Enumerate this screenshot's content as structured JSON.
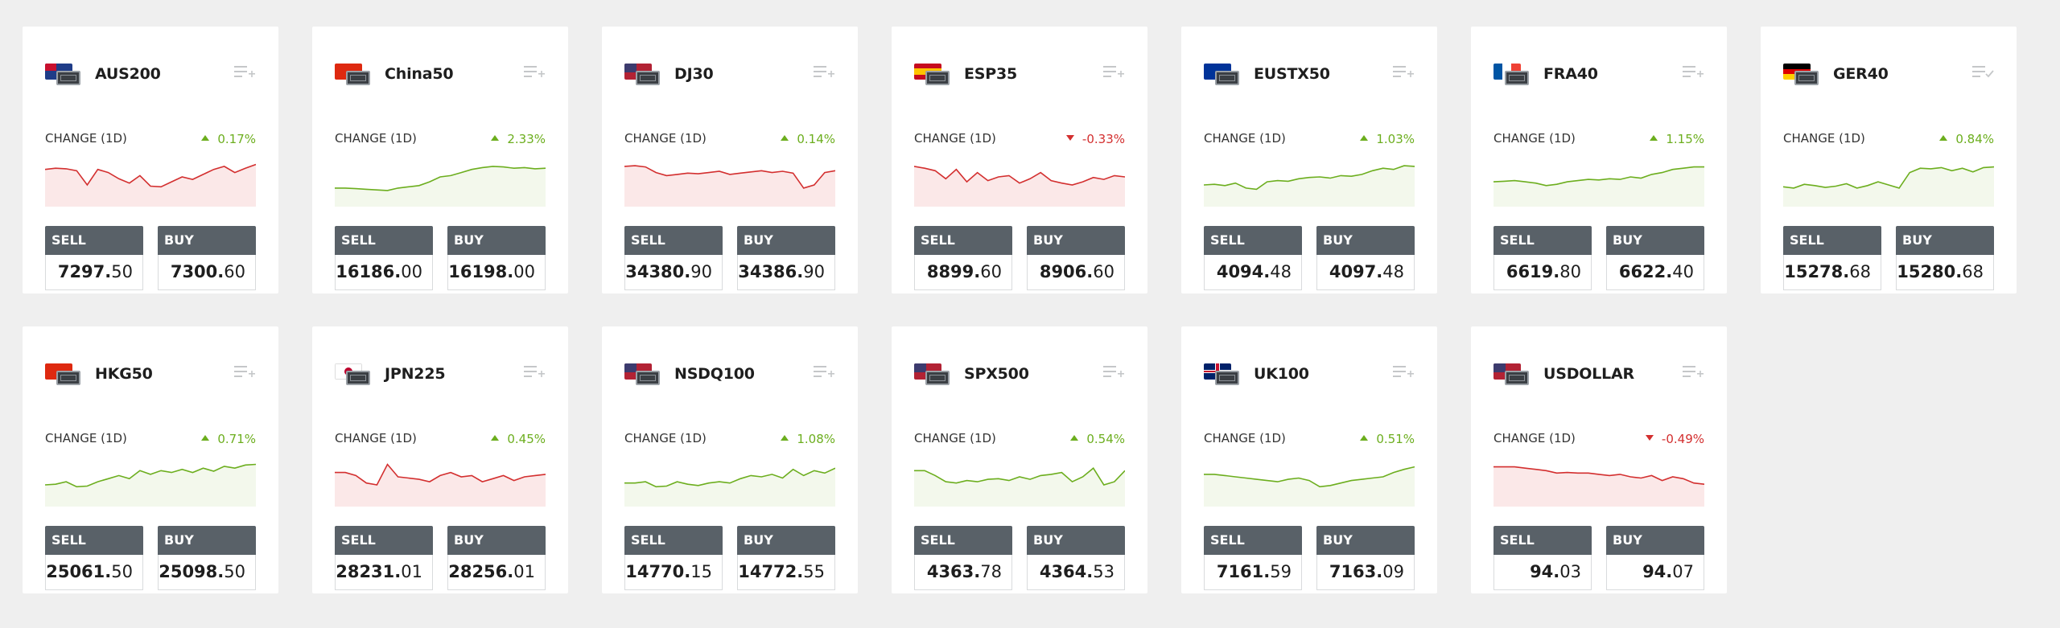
{
  "labels": {
    "change": "CHANGE (1D)",
    "sell": "SELL",
    "buy": "BUY"
  },
  "colors": {
    "up": "#6cae1e",
    "down": "#d32f2f",
    "up_fill": "#f3f8ec",
    "down_fill": "#fbe8e8",
    "button": "#596168",
    "background": "#efefef"
  },
  "cards": [
    {
      "symbol": "AUS200",
      "flag": "au",
      "change": "0.17%",
      "direction": "up",
      "sparkline_color": "down",
      "sell_main": "7297.",
      "sell_small": "50",
      "buy_main": "7300.",
      "buy_small": "60",
      "watch": "add",
      "spark": [
        60,
        62,
        61,
        58,
        35,
        60,
        55,
        45,
        38,
        50,
        33,
        32,
        40,
        48,
        44,
        52,
        60,
        65,
        55,
        62,
        68
      ]
    },
    {
      "symbol": "China50",
      "flag": "cn",
      "change": "2.33%",
      "direction": "up",
      "sparkline_color": "up",
      "sell_main": "16186.",
      "sell_small": "00",
      "buy_main": "16198.",
      "buy_small": "00",
      "watch": "add",
      "spark": [
        30,
        30,
        29,
        28,
        27,
        26,
        30,
        32,
        34,
        40,
        48,
        50,
        55,
        60,
        63,
        65,
        64,
        62,
        63,
        61,
        62
      ]
    },
    {
      "symbol": "DJ30",
      "flag": "us",
      "change": "0.14%",
      "direction": "up",
      "sparkline_color": "down",
      "sell_main": "34380.",
      "sell_small": "90",
      "buy_main": "34386.",
      "buy_small": "90",
      "watch": "add",
      "spark": [
        65,
        66,
        64,
        55,
        50,
        52,
        54,
        53,
        55,
        57,
        52,
        54,
        56,
        58,
        55,
        57,
        54,
        30,
        35,
        55,
        58
      ]
    },
    {
      "symbol": "ESP35",
      "flag": "es",
      "change": "-0.33%",
      "direction": "down",
      "sparkline_color": "down",
      "sell_main": "8899.",
      "sell_small": "60",
      "buy_main": "8906.",
      "buy_small": "60",
      "watch": "add",
      "spark": [
        65,
        62,
        58,
        45,
        60,
        40,
        55,
        42,
        48,
        50,
        38,
        45,
        55,
        42,
        38,
        35,
        40,
        47,
        44,
        50,
        48
      ]
    },
    {
      "symbol": "EUSTX50",
      "flag": "eu",
      "change": "1.03%",
      "direction": "up",
      "sparkline_color": "up",
      "sell_main": "4094.",
      "sell_small": "48",
      "buy_main": "4097.",
      "buy_small": "48",
      "watch": "add",
      "spark": [
        35,
        36,
        34,
        38,
        30,
        28,
        40,
        42,
        41,
        45,
        47,
        48,
        46,
        50,
        49,
        52,
        58,
        62,
        60,
        66,
        65
      ]
    },
    {
      "symbol": "FRA40",
      "flag": "fr",
      "change": "1.15%",
      "direction": "up",
      "sparkline_color": "up",
      "sell_main": "6619.",
      "sell_small": "80",
      "buy_main": "6622.",
      "buy_small": "40",
      "watch": "add",
      "spark": [
        40,
        41,
        42,
        40,
        38,
        34,
        36,
        40,
        42,
        44,
        43,
        45,
        44,
        48,
        46,
        52,
        55,
        60,
        62,
        64,
        64
      ]
    },
    {
      "symbol": "GER40",
      "flag": "de",
      "change": "0.84%",
      "direction": "up",
      "sparkline_color": "up",
      "sell_main": "15278.",
      "sell_small": "68",
      "buy_main": "15280.",
      "buy_small": "68",
      "watch": "check",
      "spark": [
        32,
        30,
        36,
        34,
        31,
        33,
        37,
        30,
        34,
        40,
        35,
        30,
        55,
        62,
        61,
        63,
        58,
        62,
        56,
        63,
        64
      ]
    },
    {
      "symbol": "HKG50",
      "flag": "hk",
      "change": "0.71%",
      "direction": "up",
      "sparkline_color": "up",
      "sell_main": "25061.",
      "sell_small": "50",
      "buy_main": "25098.",
      "buy_small": "50",
      "watch": "add",
      "spark": [
        35,
        36,
        40,
        32,
        33,
        40,
        45,
        50,
        45,
        58,
        52,
        58,
        55,
        60,
        55,
        62,
        57,
        65,
        62,
        67,
        68
      ]
    },
    {
      "symbol": "JPN225",
      "flag": "jp",
      "change": "0.45%",
      "direction": "up",
      "sparkline_color": "down",
      "sell_main": "28231.",
      "sell_small": "01",
      "buy_main": "28256.",
      "buy_small": "01",
      "watch": "add",
      "spark": [
        55,
        55,
        50,
        38,
        35,
        68,
        48,
        46,
        44,
        40,
        50,
        55,
        48,
        50,
        40,
        45,
        50,
        42,
        48,
        50,
        52
      ]
    },
    {
      "symbol": "NSDQ100",
      "flag": "us",
      "change": "1.08%",
      "direction": "up",
      "sparkline_color": "up",
      "sell_main": "14770.",
      "sell_small": "15",
      "buy_main": "14772.",
      "buy_small": "55",
      "watch": "add",
      "spark": [
        38,
        38,
        40,
        32,
        33,
        40,
        36,
        34,
        38,
        40,
        38,
        45,
        50,
        48,
        52,
        46,
        60,
        50,
        58,
        54,
        62
      ]
    },
    {
      "symbol": "SPX500",
      "flag": "us",
      "change": "0.54%",
      "direction": "up",
      "sparkline_color": "up",
      "sell_main": "4363.",
      "sell_small": "78",
      "buy_main": "4364.",
      "buy_small": "53",
      "watch": "add",
      "spark": [
        58,
        58,
        50,
        40,
        38,
        42,
        40,
        44,
        45,
        42,
        48,
        44,
        50,
        52,
        55,
        40,
        48,
        62,
        35,
        40,
        58
      ]
    },
    {
      "symbol": "UK100",
      "flag": "gb",
      "change": "0.51%",
      "direction": "up",
      "sparkline_color": "up",
      "sell_main": "7161.",
      "sell_small": "59",
      "buy_main": "7163.",
      "buy_small": "09",
      "watch": "add",
      "spark": [
        52,
        52,
        50,
        48,
        46,
        44,
        42,
        40,
        44,
        46,
        42,
        32,
        34,
        38,
        42,
        44,
        46,
        48,
        55,
        60,
        64
      ]
    },
    {
      "symbol": "USDOLLAR",
      "flag": "us",
      "change": "-0.49%",
      "direction": "down",
      "sparkline_color": "down",
      "sell_main": "94.",
      "sell_small": "03",
      "buy_main": "94.",
      "buy_small": "07",
      "watch": "add",
      "spark": [
        64,
        64,
        64,
        62,
        60,
        58,
        54,
        55,
        54,
        54,
        52,
        50,
        52,
        48,
        46,
        50,
        42,
        48,
        45,
        38,
        36
      ]
    }
  ]
}
